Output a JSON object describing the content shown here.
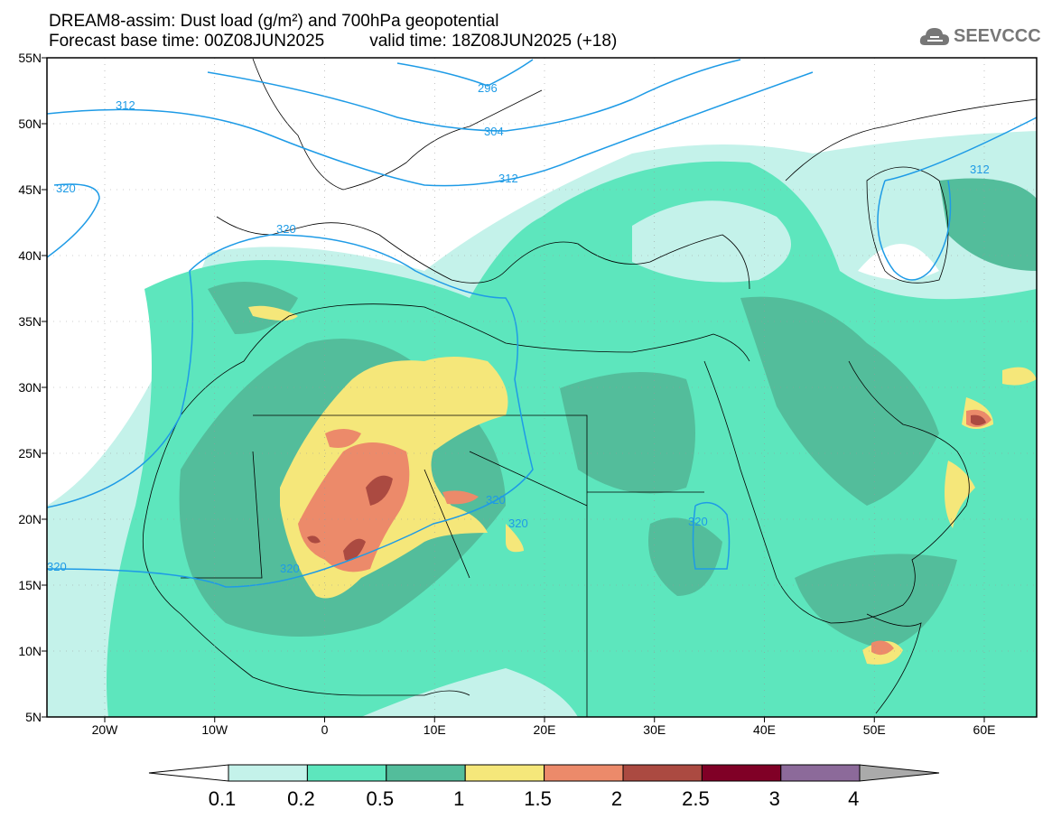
{
  "title": {
    "line1": "DREAM8-assim: Dust load (g/m²) and 700hPa geopotential",
    "base_time": "Forecast base time: 00Z08JUN2025",
    "valid_time": "valid time: 18Z08JUN2025 (+18)"
  },
  "logo": {
    "text": "SEEVCCC",
    "icon": "cloud-icon"
  },
  "axes": {
    "lat_labels": [
      "55N",
      "50N",
      "45N",
      "40N",
      "35N",
      "30N",
      "25N",
      "20N",
      "15N",
      "10N",
      "5N"
    ],
    "lon_labels": [
      "20W",
      "10W",
      "0",
      "10E",
      "20E",
      "30E",
      "40E",
      "50E",
      "60E"
    ]
  },
  "contours": {
    "labels": [
      "296",
      "304",
      "312",
      "312",
      "312",
      "320",
      "320",
      "320",
      "320",
      "320",
      "320",
      "320"
    ]
  },
  "colorbar": {
    "labels": [
      "0.1",
      "0.2",
      "0.5",
      "1",
      "1.5",
      "2",
      "2.5",
      "3",
      "4"
    ],
    "colors": [
      "#c4f2ea",
      "#5de6bd",
      "#53bd9b",
      "#f5e77a",
      "#ec8a6a",
      "#ab4a41",
      "#800026",
      "#8c6a9a"
    ],
    "under_color": "#ffffff",
    "over_color": "#aaaaaa"
  }
}
